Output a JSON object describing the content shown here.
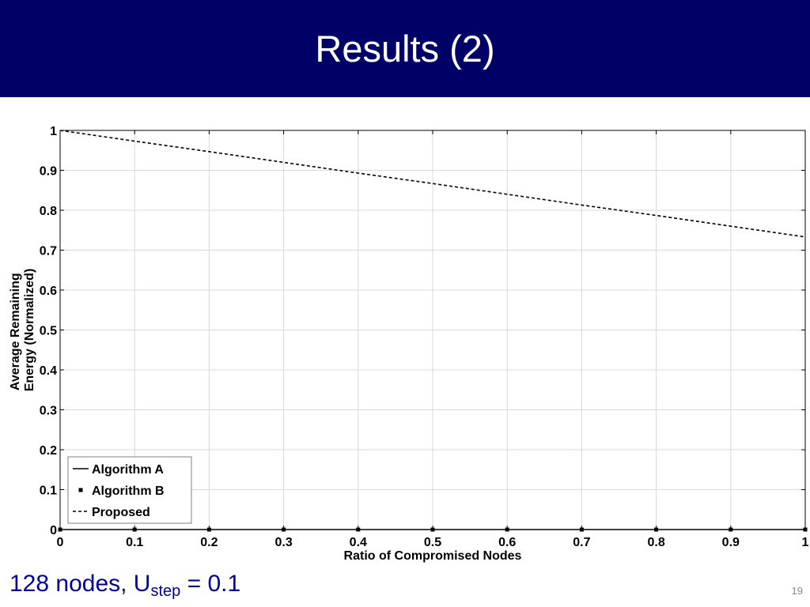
{
  "slide": {
    "title": "Results (2)",
    "footer": {
      "prefix": "128 nodes, U",
      "subscript": "step",
      "suffix": " = 0.1"
    },
    "page_number": "19",
    "colors": {
      "title_bar": "#000066",
      "title_text": "#ffffff",
      "footer_text": "#00009c",
      "page_number": "#8a8a8a"
    }
  },
  "chart_data": {
    "type": "line",
    "xlabel": "Ratio of Compromised Nodes",
    "ylabel_lines": [
      "Average Remaining",
      "Energy (Normalized)"
    ],
    "xlim": [
      0,
      1
    ],
    "ylim": [
      0,
      1
    ],
    "x_ticks": [
      "0",
      "0.1",
      "0.2",
      "0.3",
      "0.4",
      "0.5",
      "0.6",
      "0.7",
      "0.8",
      "0.9",
      "1"
    ],
    "y_ticks": [
      "0",
      "0.1",
      "0.2",
      "0.3",
      "0.4",
      "0.5",
      "0.6",
      "0.7",
      "0.8",
      "0.9",
      "1"
    ],
    "grid": true,
    "legend_position": "bottom-left",
    "x": [
      0,
      0.1,
      0.2,
      0.3,
      0.4,
      0.5,
      0.6,
      0.7,
      0.8,
      0.9,
      1.0
    ],
    "series": [
      {
        "name": "Algorithm A",
        "style": "solid",
        "marker": "none",
        "color": "#000000",
        "values": [
          0,
          0,
          0,
          0,
          0,
          0,
          0,
          0,
          0,
          0,
          0
        ]
      },
      {
        "name": "Algorithm B",
        "style": "none",
        "marker": "square",
        "color": "#000000",
        "values": [
          0,
          0,
          0,
          0,
          0,
          0,
          0,
          0,
          0,
          0,
          0
        ]
      },
      {
        "name": "Proposed",
        "style": "dashed",
        "marker": "none",
        "color": "#000000",
        "values": [
          1.0,
          0.973,
          0.947,
          0.92,
          0.893,
          0.867,
          0.84,
          0.813,
          0.787,
          0.76,
          0.733
        ]
      }
    ]
  }
}
